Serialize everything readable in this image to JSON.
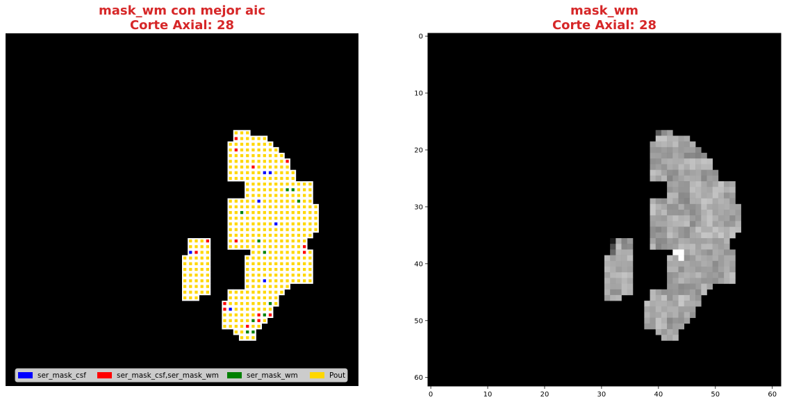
{
  "left_panel": {
    "title_line1": "mask_wm con mejor aic",
    "title_line2": "Corte Axial: 28",
    "legend": [
      {
        "label": "ser_mask_csf",
        "color": "#0000ff"
      },
      {
        "label": "ser_mask_csf,ser_mask_wm",
        "color": "#ff0000"
      },
      {
        "label": "ser_mask_wm",
        "color": "#008000"
      },
      {
        "label": "Pout",
        "color": "#ffd700"
      }
    ]
  },
  "right_panel": {
    "title_line1": "mask_wm",
    "title_line2": "Corte Axial: 28"
  },
  "chart_data": [
    {
      "type": "heatmap",
      "title": "mask_wm con mejor aic\nCorte Axial: 28",
      "background_color": "#000000",
      "grid_size": [
        62,
        62
      ],
      "default_category": "Pout",
      "categories": {
        "Pout": "#ffd700",
        "ser_mask_csf": "#0000ff",
        "ser_mask_csf,ser_mask_wm": "#ff0000",
        "ser_mask_wm": "#008000"
      },
      "mask_rows": [
        [
          17,
          40,
          42
        ],
        [
          18,
          40,
          45
        ],
        [
          19,
          39,
          46
        ],
        [
          20,
          39,
          47
        ],
        [
          21,
          39,
          48
        ],
        [
          22,
          39,
          49
        ],
        [
          23,
          39,
          49
        ],
        [
          24,
          39,
          50
        ],
        [
          25,
          39,
          50
        ],
        [
          26,
          42,
          53
        ],
        [
          27,
          42,
          53
        ],
        [
          28,
          42,
          53
        ],
        [
          29,
          39,
          53
        ],
        [
          30,
          39,
          54
        ],
        [
          31,
          39,
          54
        ],
        [
          32,
          39,
          54
        ],
        [
          33,
          39,
          54
        ],
        [
          34,
          39,
          54
        ],
        [
          35,
          39,
          53
        ],
        [
          36,
          32,
          35
        ],
        [
          36,
          39,
          52
        ],
        [
          37,
          32,
          35
        ],
        [
          37,
          39,
          52
        ],
        [
          38,
          32,
          35
        ],
        [
          38,
          43,
          53
        ],
        [
          39,
          31,
          35
        ],
        [
          39,
          42,
          53
        ],
        [
          40,
          31,
          35
        ],
        [
          40,
          42,
          53
        ],
        [
          41,
          31,
          35
        ],
        [
          41,
          42,
          53
        ],
        [
          42,
          31,
          35
        ],
        [
          42,
          42,
          53
        ],
        [
          43,
          31,
          35
        ],
        [
          43,
          42,
          53
        ],
        [
          44,
          31,
          35
        ],
        [
          44,
          42,
          49
        ],
        [
          45,
          31,
          35
        ],
        [
          45,
          39,
          48
        ],
        [
          46,
          31,
          33
        ],
        [
          46,
          39,
          47
        ],
        [
          47,
          38,
          47
        ],
        [
          48,
          38,
          46
        ],
        [
          49,
          38,
          46
        ],
        [
          50,
          38,
          45
        ],
        [
          51,
          38,
          44
        ],
        [
          52,
          40,
          43
        ],
        [
          53,
          41,
          43
        ]
      ],
      "special_voxels": [
        {
          "row": 18,
          "col": 40,
          "category": "ser_mask_csf,ser_mask_wm"
        },
        {
          "row": 20,
          "col": 40,
          "category": "ser_mask_csf,ser_mask_wm"
        },
        {
          "row": 22,
          "col": 49,
          "category": "ser_mask_csf,ser_mask_wm"
        },
        {
          "row": 23,
          "col": 43,
          "category": "ser_mask_csf,ser_mask_wm"
        },
        {
          "row": 24,
          "col": 45,
          "category": "ser_mask_csf"
        },
        {
          "row": 24,
          "col": 46,
          "category": "ser_mask_csf"
        },
        {
          "row": 27,
          "col": 49,
          "category": "ser_mask_wm"
        },
        {
          "row": 27,
          "col": 50,
          "category": "ser_mask_wm"
        },
        {
          "row": 29,
          "col": 44,
          "category": "ser_mask_csf"
        },
        {
          "row": 29,
          "col": 51,
          "category": "ser_mask_wm"
        },
        {
          "row": 31,
          "col": 41,
          "category": "ser_mask_wm"
        },
        {
          "row": 33,
          "col": 47,
          "category": "ser_mask_csf"
        },
        {
          "row": 36,
          "col": 35,
          "category": "ser_mask_csf,ser_mask_wm"
        },
        {
          "row": 36,
          "col": 40,
          "category": "ser_mask_csf,ser_mask_wm"
        },
        {
          "row": 36,
          "col": 44,
          "category": "ser_mask_wm"
        },
        {
          "row": 37,
          "col": 52,
          "category": "ser_mask_csf,ser_mask_wm"
        },
        {
          "row": 38,
          "col": 32,
          "category": "ser_mask_csf"
        },
        {
          "row": 38,
          "col": 33,
          "category": "ser_mask_csf,ser_mask_wm"
        },
        {
          "row": 38,
          "col": 45,
          "category": "ser_mask_wm"
        },
        {
          "row": 38,
          "col": 52,
          "category": "ser_mask_csf,ser_mask_wm"
        },
        {
          "row": 43,
          "col": 45,
          "category": "ser_mask_csf"
        },
        {
          "row": 47,
          "col": 38,
          "category": "ser_mask_csf,ser_mask_wm"
        },
        {
          "row": 47,
          "col": 46,
          "category": "ser_mask_wm"
        },
        {
          "row": 48,
          "col": 38,
          "category": "ser_mask_csf,ser_mask_wm"
        },
        {
          "row": 48,
          "col": 39,
          "category": "ser_mask_csf"
        },
        {
          "row": 48,
          "col": 47,
          "category": "ser_mask_wm"
        },
        {
          "row": 49,
          "col": 44,
          "category": "ser_mask_csf,ser_mask_wm"
        },
        {
          "row": 49,
          "col": 45,
          "category": "ser_mask_wm"
        },
        {
          "row": 49,
          "col": 46,
          "category": "ser_mask_csf,ser_mask_wm"
        },
        {
          "row": 50,
          "col": 43,
          "category": "ser_mask_wm"
        },
        {
          "row": 50,
          "col": 44,
          "category": "ser_mask_csf,ser_mask_wm"
        },
        {
          "row": 50,
          "col": 46,
          "category": "ser_mask_wm"
        },
        {
          "row": 51,
          "col": 42,
          "category": "ser_mask_csf,ser_mask_wm"
        },
        {
          "row": 52,
          "col": 42,
          "category": "ser_mask_wm"
        },
        {
          "row": 52,
          "col": 43,
          "category": "ser_mask_wm"
        }
      ],
      "legend_position": "lower center"
    },
    {
      "type": "heatmap",
      "title": "mask_wm\nCorte Axial: 28",
      "colormap": "gray",
      "background_color": "#000000",
      "grid_size": [
        62,
        62
      ],
      "xlim": [
        -0.5,
        61.5
      ],
      "ylim": [
        61.5,
        -0.5
      ],
      "xticks": [
        0,
        10,
        20,
        30,
        40,
        50,
        60
      ],
      "yticks": [
        0,
        10,
        20,
        30,
        40,
        50,
        60
      ],
      "mask_rows": [
        [
          17,
          40,
          42
        ],
        [
          18,
          40,
          45
        ],
        [
          19,
          39,
          46
        ],
        [
          20,
          39,
          47
        ],
        [
          21,
          39,
          48
        ],
        [
          22,
          39,
          49
        ],
        [
          23,
          39,
          49
        ],
        [
          24,
          39,
          50
        ],
        [
          25,
          39,
          50
        ],
        [
          26,
          42,
          53
        ],
        [
          27,
          42,
          53
        ],
        [
          28,
          42,
          53
        ],
        [
          29,
          39,
          53
        ],
        [
          30,
          39,
          54
        ],
        [
          31,
          39,
          54
        ],
        [
          32,
          39,
          54
        ],
        [
          33,
          39,
          54
        ],
        [
          34,
          39,
          54
        ],
        [
          35,
          39,
          53
        ],
        [
          36,
          32,
          35
        ],
        [
          36,
          39,
          52
        ],
        [
          37,
          32,
          35
        ],
        [
          37,
          39,
          52
        ],
        [
          38,
          32,
          35
        ],
        [
          38,
          43,
          53
        ],
        [
          39,
          31,
          35
        ],
        [
          39,
          42,
          53
        ],
        [
          40,
          31,
          35
        ],
        [
          40,
          42,
          53
        ],
        [
          41,
          31,
          35
        ],
        [
          41,
          42,
          53
        ],
        [
          42,
          31,
          35
        ],
        [
          42,
          42,
          53
        ],
        [
          43,
          31,
          35
        ],
        [
          43,
          42,
          53
        ],
        [
          44,
          31,
          35
        ],
        [
          44,
          42,
          49
        ],
        [
          45,
          31,
          35
        ],
        [
          45,
          39,
          48
        ],
        [
          46,
          31,
          33
        ],
        [
          46,
          39,
          47
        ],
        [
          47,
          38,
          47
        ],
        [
          48,
          38,
          46
        ],
        [
          49,
          38,
          46
        ],
        [
          50,
          38,
          45
        ],
        [
          51,
          38,
          44
        ],
        [
          52,
          40,
          43
        ],
        [
          53,
          41,
          43
        ]
      ],
      "intensity_range": [
        0.5,
        0.8
      ],
      "bright_voxels": [
        {
          "row": 38,
          "col": 43,
          "intensity": 1.0
        },
        {
          "row": 38,
          "col": 44,
          "intensity": 1.0
        },
        {
          "row": 39,
          "col": 44,
          "intensity": 1.0
        }
      ],
      "dark_voxels": [
        {
          "row": 17,
          "col": 40,
          "intensity": 0.35
        },
        {
          "row": 36,
          "col": 32,
          "intensity": 0.1
        },
        {
          "row": 37,
          "col": 32,
          "intensity": 0.3
        },
        {
          "row": 38,
          "col": 32,
          "intensity": 0.4
        }
      ]
    }
  ]
}
